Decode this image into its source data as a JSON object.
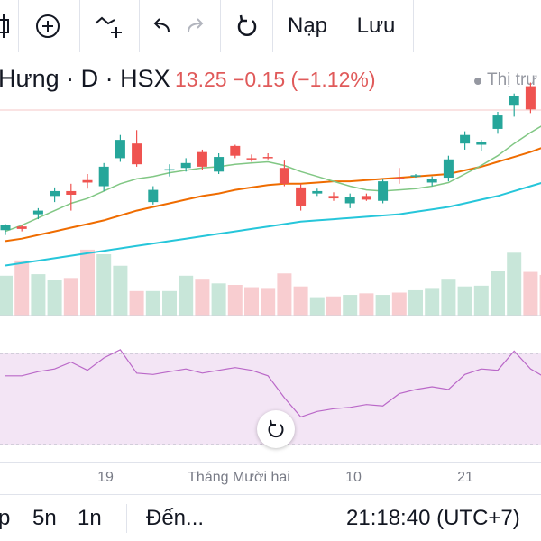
{
  "toolbar": {
    "items": [
      {
        "name": "chart-type-icon"
      },
      {
        "name": "add-indicator-icon"
      },
      {
        "name": "drawing-tools-icon"
      },
      {
        "name": "undo-icon"
      },
      {
        "name": "redo-icon"
      },
      {
        "name": "reload-icon"
      }
    ],
    "load_label": "Nạp",
    "save_label": "Lưu"
  },
  "symbol": {
    "name": "Hưng · D · HSX",
    "price": "13.25 −0.15 (−1.12%)",
    "market_label": "Thị trư"
  },
  "colors": {
    "up": "#26a69a",
    "down": "#ef5350",
    "ma_fast": "#81c784",
    "ma_mid": "#ef6c00",
    "ma_slow": "#26c6da",
    "rsi_line": "#ba68c8",
    "rsi_band": "#f3e5f5"
  },
  "chart_data": {
    "type": "candlestick",
    "candles": [
      {
        "o": 12.34,
        "h": 12.39,
        "l": 12.3,
        "c": 12.38
      },
      {
        "o": 12.37,
        "h": 12.38,
        "l": 12.33,
        "c": 12.35
      },
      {
        "o": 12.47,
        "h": 12.52,
        "l": 12.43,
        "c": 12.5
      },
      {
        "o": 12.62,
        "h": 12.69,
        "l": 12.57,
        "c": 12.66
      },
      {
        "o": 12.66,
        "h": 12.72,
        "l": 12.5,
        "c": 12.63
      },
      {
        "o": 12.75,
        "h": 12.8,
        "l": 12.68,
        "c": 12.73
      },
      {
        "o": 12.7,
        "h": 12.89,
        "l": 12.66,
        "c": 12.86
      },
      {
        "o": 12.93,
        "h": 13.12,
        "l": 12.9,
        "c": 13.08
      },
      {
        "o": 13.05,
        "h": 13.16,
        "l": 12.86,
        "c": 12.88
      },
      {
        "o": 12.57,
        "h": 12.7,
        "l": 12.55,
        "c": 12.67
      },
      {
        "o": 12.83,
        "h": 12.88,
        "l": 12.78,
        "c": 12.84
      },
      {
        "o": 12.85,
        "h": 12.93,
        "l": 12.82,
        "c": 12.89
      },
      {
        "o": 12.98,
        "h": 13.0,
        "l": 12.83,
        "c": 12.86
      },
      {
        "o": 12.82,
        "h": 12.97,
        "l": 12.8,
        "c": 12.94
      },
      {
        "o": 13.03,
        "h": 13.04,
        "l": 12.93,
        "c": 12.95
      },
      {
        "o": 12.93,
        "h": 12.96,
        "l": 12.9,
        "c": 12.92
      },
      {
        "o": 12.94,
        "h": 12.97,
        "l": 12.92,
        "c": 12.93
      },
      {
        "o": 12.85,
        "h": 12.91,
        "l": 12.7,
        "c": 12.72
      },
      {
        "o": 12.69,
        "h": 12.72,
        "l": 12.5,
        "c": 12.54
      },
      {
        "o": 12.64,
        "h": 12.68,
        "l": 12.62,
        "c": 12.66
      },
      {
        "o": 12.62,
        "h": 12.65,
        "l": 12.58,
        "c": 12.6
      },
      {
        "o": 12.56,
        "h": 12.64,
        "l": 12.52,
        "c": 12.61
      },
      {
        "o": 12.62,
        "h": 12.64,
        "l": 12.58,
        "c": 12.59
      },
      {
        "o": 12.58,
        "h": 12.76,
        "l": 12.56,
        "c": 12.74
      },
      {
        "o": 12.77,
        "h": 12.85,
        "l": 12.72,
        "c": 12.76
      },
      {
        "o": 12.79,
        "h": 12.8,
        "l": 12.77,
        "c": 12.79
      },
      {
        "o": 12.73,
        "h": 12.78,
        "l": 12.7,
        "c": 12.76
      },
      {
        "o": 12.77,
        "h": 12.95,
        "l": 12.74,
        "c": 12.92
      },
      {
        "o": 13.05,
        "h": 13.15,
        "l": 13.0,
        "c": 13.12
      },
      {
        "o": 13.04,
        "h": 13.08,
        "l": 12.99,
        "c": 13.06
      },
      {
        "o": 13.17,
        "h": 13.31,
        "l": 13.13,
        "c": 13.28
      },
      {
        "o": 13.36,
        "h": 13.46,
        "l": 13.27,
        "c": 13.44
      },
      {
        "o": 13.52,
        "h": 13.55,
        "l": 13.3,
        "c": 13.33
      },
      {
        "o": 13.33,
        "h": 13.38,
        "l": 13.18,
        "c": 13.25
      }
    ],
    "volume": [
      52,
      72,
      54,
      46,
      49,
      86,
      80,
      65,
      32,
      32,
      32,
      52,
      48,
      42,
      40,
      37,
      36,
      55,
      38,
      24,
      25,
      27,
      29,
      27,
      30,
      33,
      36,
      48,
      38,
      39,
      58,
      82,
      57,
      53
    ],
    "rsi": [
      60,
      60,
      63,
      65,
      70,
      64,
      73,
      79,
      62,
      61,
      63,
      65,
      62,
      64,
      66,
      64,
      60,
      44,
      30,
      34,
      36,
      37,
      39,
      38,
      47,
      50,
      52,
      50,
      61,
      65,
      64,
      78,
      65,
      58
    ],
    "ma_fast": [
      12.33,
      12.38,
      12.44,
      12.5,
      12.56,
      12.6,
      12.66,
      12.72,
      12.76,
      12.78,
      12.81,
      12.83,
      12.85,
      12.86,
      12.88,
      12.89,
      12.9,
      12.87,
      12.82,
      12.78,
      12.74,
      12.7,
      12.67,
      12.66,
      12.67,
      12.68,
      12.7,
      12.73,
      12.8,
      12.87,
      12.95,
      13.05,
      13.14,
      13.22
    ],
    "ma_mid": [
      12.25,
      12.27,
      12.3,
      12.33,
      12.36,
      12.39,
      12.42,
      12.46,
      12.5,
      12.53,
      12.56,
      12.59,
      12.62,
      12.64,
      12.67,
      12.69,
      12.71,
      12.72,
      12.72,
      12.73,
      12.74,
      12.74,
      12.75,
      12.76,
      12.77,
      12.78,
      12.79,
      12.8,
      12.83,
      12.86,
      12.9,
      12.94,
      12.98,
      13.03
    ],
    "ma_slow": [
      12.05,
      12.07,
      12.09,
      12.11,
      12.13,
      12.15,
      12.17,
      12.19,
      12.21,
      12.23,
      12.25,
      12.27,
      12.29,
      12.31,
      12.33,
      12.35,
      12.37,
      12.39,
      12.41,
      12.42,
      12.43,
      12.44,
      12.45,
      12.46,
      12.47,
      12.49,
      12.51,
      12.53,
      12.56,
      12.59,
      12.62,
      12.66,
      12.7,
      12.74
    ],
    "time_labels": [
      "19",
      "Tháng Mười hai",
      "10",
      "21"
    ]
  },
  "bottom": {
    "partial_left": "p",
    "range_5d": "5n",
    "range_1d": "1n",
    "goto": "Đến...",
    "clock": "21:18:40 (UTC+7)"
  }
}
